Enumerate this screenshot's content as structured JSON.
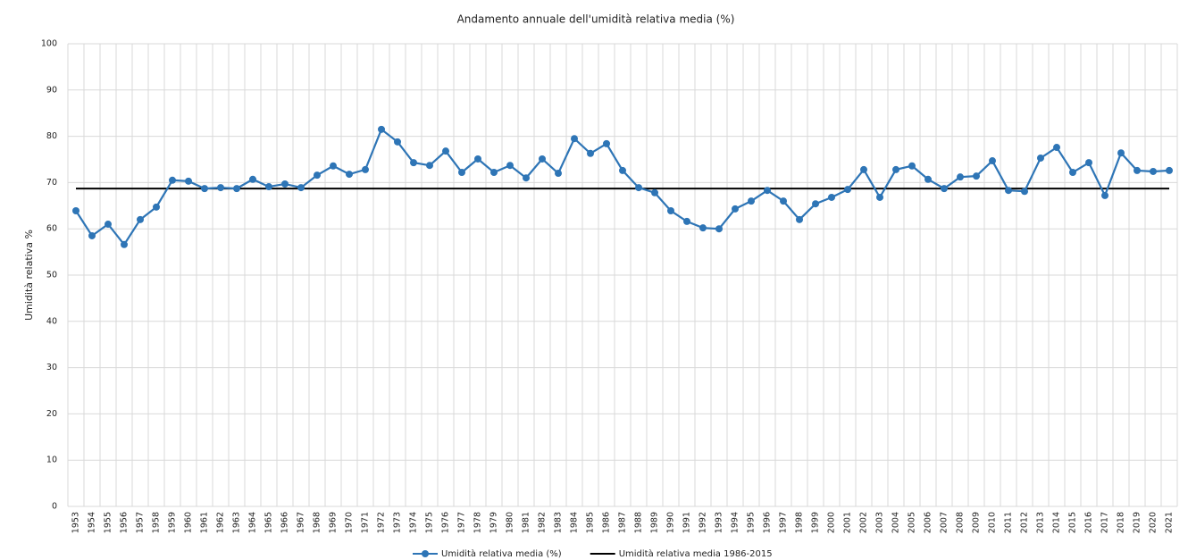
{
  "chart_data": {
    "type": "line",
    "title": "Andamento annuale dell'umidità relativa media (%)",
    "y_label": "Umidità relativa %",
    "categories": [
      "1953",
      "1954",
      "1955",
      "1956",
      "1957",
      "1958",
      "1959",
      "1960",
      "1961",
      "1962",
      "1963",
      "1964",
      "1965",
      "1966",
      "1967",
      "1968",
      "1969",
      "1970",
      "1971",
      "1972",
      "1973",
      "1974",
      "1975",
      "1976",
      "1977",
      "1978",
      "1979",
      "1980",
      "1981",
      "1982",
      "1983",
      "1984",
      "1985",
      "1986",
      "1987",
      "1988",
      "1989",
      "1990",
      "1991",
      "1992",
      "1993",
      "1994",
      "1995",
      "1996",
      "1997",
      "1998",
      "1999",
      "2000",
      "2001",
      "2002",
      "2003",
      "2004",
      "2005",
      "2006",
      "2007",
      "2008",
      "2009",
      "2010",
      "2011",
      "2012",
      "2013",
      "2014",
      "2015",
      "2016",
      "2017",
      "2018",
      "2019",
      "2020",
      "2021"
    ],
    "series": [
      {
        "name": "Umidità relativa media (%)",
        "color": "#2e75b6",
        "markers": true,
        "values": [
          63.9,
          58.5,
          61.0,
          56.6,
          62.0,
          64.7,
          70.5,
          70.3,
          68.7,
          68.9,
          68.7,
          70.7,
          69.1,
          69.7,
          68.9,
          71.6,
          73.6,
          71.8,
          72.8,
          81.5,
          78.8,
          74.3,
          73.7,
          76.8,
          72.2,
          75.1,
          72.2,
          73.7,
          71.0,
          75.1,
          72.0,
          79.5,
          76.3,
          78.4,
          72.6,
          68.9,
          67.8,
          63.9,
          61.6,
          60.2,
          60.0,
          64.3,
          66.0,
          68.3,
          66.0,
          62.0,
          65.4,
          66.8,
          68.5,
          72.8,
          66.8,
          72.8,
          73.6,
          70.7,
          68.7,
          71.2,
          71.4,
          74.7,
          68.3,
          68.1,
          75.3,
          77.6,
          72.2,
          74.3,
          67.2,
          76.4,
          72.6,
          72.4,
          72.6
        ]
      },
      {
        "name": "Umidità relativa media 1986-2015",
        "color": "#000000",
        "markers": false,
        "values": [
          68.7,
          68.7,
          68.7,
          68.7,
          68.7,
          68.7,
          68.7,
          68.7,
          68.7,
          68.7,
          68.7,
          68.7,
          68.7,
          68.7,
          68.7,
          68.7,
          68.7,
          68.7,
          68.7,
          68.7,
          68.7,
          68.7,
          68.7,
          68.7,
          68.7,
          68.7,
          68.7,
          68.7,
          68.7,
          68.7,
          68.7,
          68.7,
          68.7,
          68.7,
          68.7,
          68.7,
          68.7,
          68.7,
          68.7,
          68.7,
          68.7,
          68.7,
          68.7,
          68.7,
          68.7,
          68.7,
          68.7,
          68.7,
          68.7,
          68.7,
          68.7,
          68.7,
          68.7,
          68.7,
          68.7,
          68.7,
          68.7,
          68.7,
          68.7,
          68.7,
          68.7,
          68.7,
          68.7,
          68.7,
          68.7,
          68.7,
          68.7,
          68.7,
          68.7
        ]
      }
    ],
    "ylim": [
      0,
      100
    ],
    "yticks": [
      0,
      10,
      20,
      30,
      40,
      50,
      60,
      70,
      80,
      90,
      100
    ],
    "grid": true,
    "legend": "bottom"
  }
}
